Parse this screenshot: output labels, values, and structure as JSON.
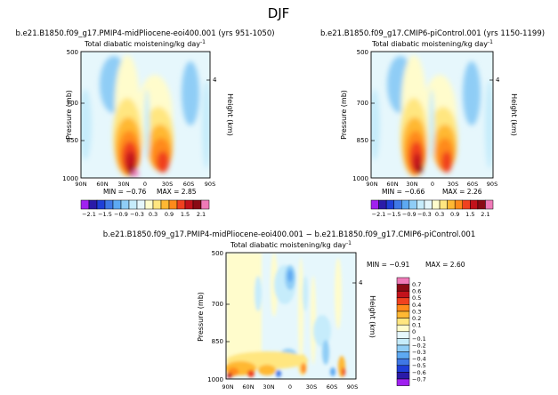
{
  "figure": {
    "title": "DJF"
  },
  "chart_data": [
    {
      "type": "heatmap",
      "panel": "top-left",
      "case_title": "b.e21.B1850.f09_g17.PMIP4-midPliocene-eoi400.001",
      "years": "(yrs 951-1050)",
      "title": "Total diabatic moistening/kg day",
      "title_exp": "-1",
      "xlabel": "",
      "ylabel": "Pressure (mb)",
      "y2label": "Height (km)",
      "x_ticks": [
        "90N",
        "60N",
        "30N",
        "0",
        "30S",
        "60S",
        "90S"
      ],
      "y_ticks": [
        "500",
        "700",
        "850",
        "1000"
      ],
      "y2_ticks": [
        "4"
      ],
      "xlim": [
        90,
        -90
      ],
      "ylim": [
        1000,
        500
      ],
      "min_text": "MIN = −0.76",
      "max_text": "MAX = 2.85",
      "min": -0.76,
      "max": 2.85,
      "levels": [
        -2.1,
        -1.8,
        -1.5,
        -1.2,
        -0.9,
        -0.6,
        -0.3,
        0,
        0.3,
        0.6,
        0.9,
        1.2,
        1.5,
        1.8,
        2.1
      ],
      "level_labels": [
        "−2.1",
        "−1.5",
        "−0.9",
        "−0.3",
        "0.3",
        "0.9",
        "1.5",
        "2.1"
      ]
    },
    {
      "type": "heatmap",
      "panel": "top-right",
      "case_title": "b.e21.B1850.f09_g17.CMIP6-piControl.001",
      "years": "(yrs 1150-1199)",
      "title": "Total diabatic moistening/kg day",
      "title_exp": "-1",
      "xlabel": "",
      "ylabel": "Pressure (mb)",
      "y2label": "Height (km)",
      "x_ticks": [
        "90N",
        "60N",
        "30N",
        "0",
        "30S",
        "60S",
        "90S"
      ],
      "y_ticks": [
        "500",
        "700",
        "850",
        "1000"
      ],
      "y2_ticks": [
        "4"
      ],
      "xlim": [
        90,
        -90
      ],
      "ylim": [
        1000,
        500
      ],
      "min_text": "MIN = −0.66",
      "max_text": "MAX = 2.26",
      "min": -0.66,
      "max": 2.26,
      "levels": [
        -2.1,
        -1.8,
        -1.5,
        -1.2,
        -0.9,
        -0.6,
        -0.3,
        0,
        0.3,
        0.6,
        0.9,
        1.2,
        1.5,
        1.8,
        2.1
      ],
      "level_labels": [
        "−2.1",
        "−1.5",
        "−0.9",
        "−0.3",
        "0.3",
        "0.9",
        "1.5",
        "2.1"
      ]
    },
    {
      "type": "heatmap",
      "panel": "bottom-difference",
      "case_title": "b.e21.B1850.f09_g17.PMIP4-midPliocene-eoi400.001  −  b.e21.B1850.f09_g17.CMIP6-piControl.001",
      "title": "Total diabatic moistening/kg day",
      "title_exp": "-1",
      "xlabel": "",
      "ylabel": "Pressure (mb)",
      "y2label": "Height (km)",
      "x_ticks": [
        "90N",
        "60N",
        "30N",
        "0",
        "30S",
        "60S",
        "90S"
      ],
      "y_ticks": [
        "500",
        "700",
        "850",
        "1000"
      ],
      "y2_ticks": [
        "4"
      ],
      "xlim": [
        90,
        -90
      ],
      "ylim": [
        1000,
        500
      ],
      "min_text": "MIN = −0.91",
      "max_text": "MAX = 2.60",
      "min": -0.91,
      "max": 2.6,
      "levels": [
        -0.7,
        -0.6,
        -0.5,
        -0.4,
        -0.3,
        -0.2,
        -0.1,
        0,
        0.1,
        0.2,
        0.3,
        0.4,
        0.5,
        0.6,
        0.7
      ],
      "level_labels": [
        "0.7",
        "0.6",
        "0.5",
        "0.4",
        "0.3",
        "0.2",
        "0.1",
        "0",
        "−0.1",
        "−0.2",
        "−0.3",
        "−0.4",
        "−0.5",
        "−0.6",
        "−0.7"
      ]
    }
  ],
  "palette": [
    "#a020f0",
    "#2a1ba8",
    "#1f3fd8",
    "#3f78e6",
    "#5da9f2",
    "#8fcdf6",
    "#c6ecfb",
    "#e6f7fc",
    "#fffccc",
    "#ffe680",
    "#ffb833",
    "#ff8a1a",
    "#f0411f",
    "#c2121b",
    "#8a0a14",
    "#f07ab8"
  ]
}
